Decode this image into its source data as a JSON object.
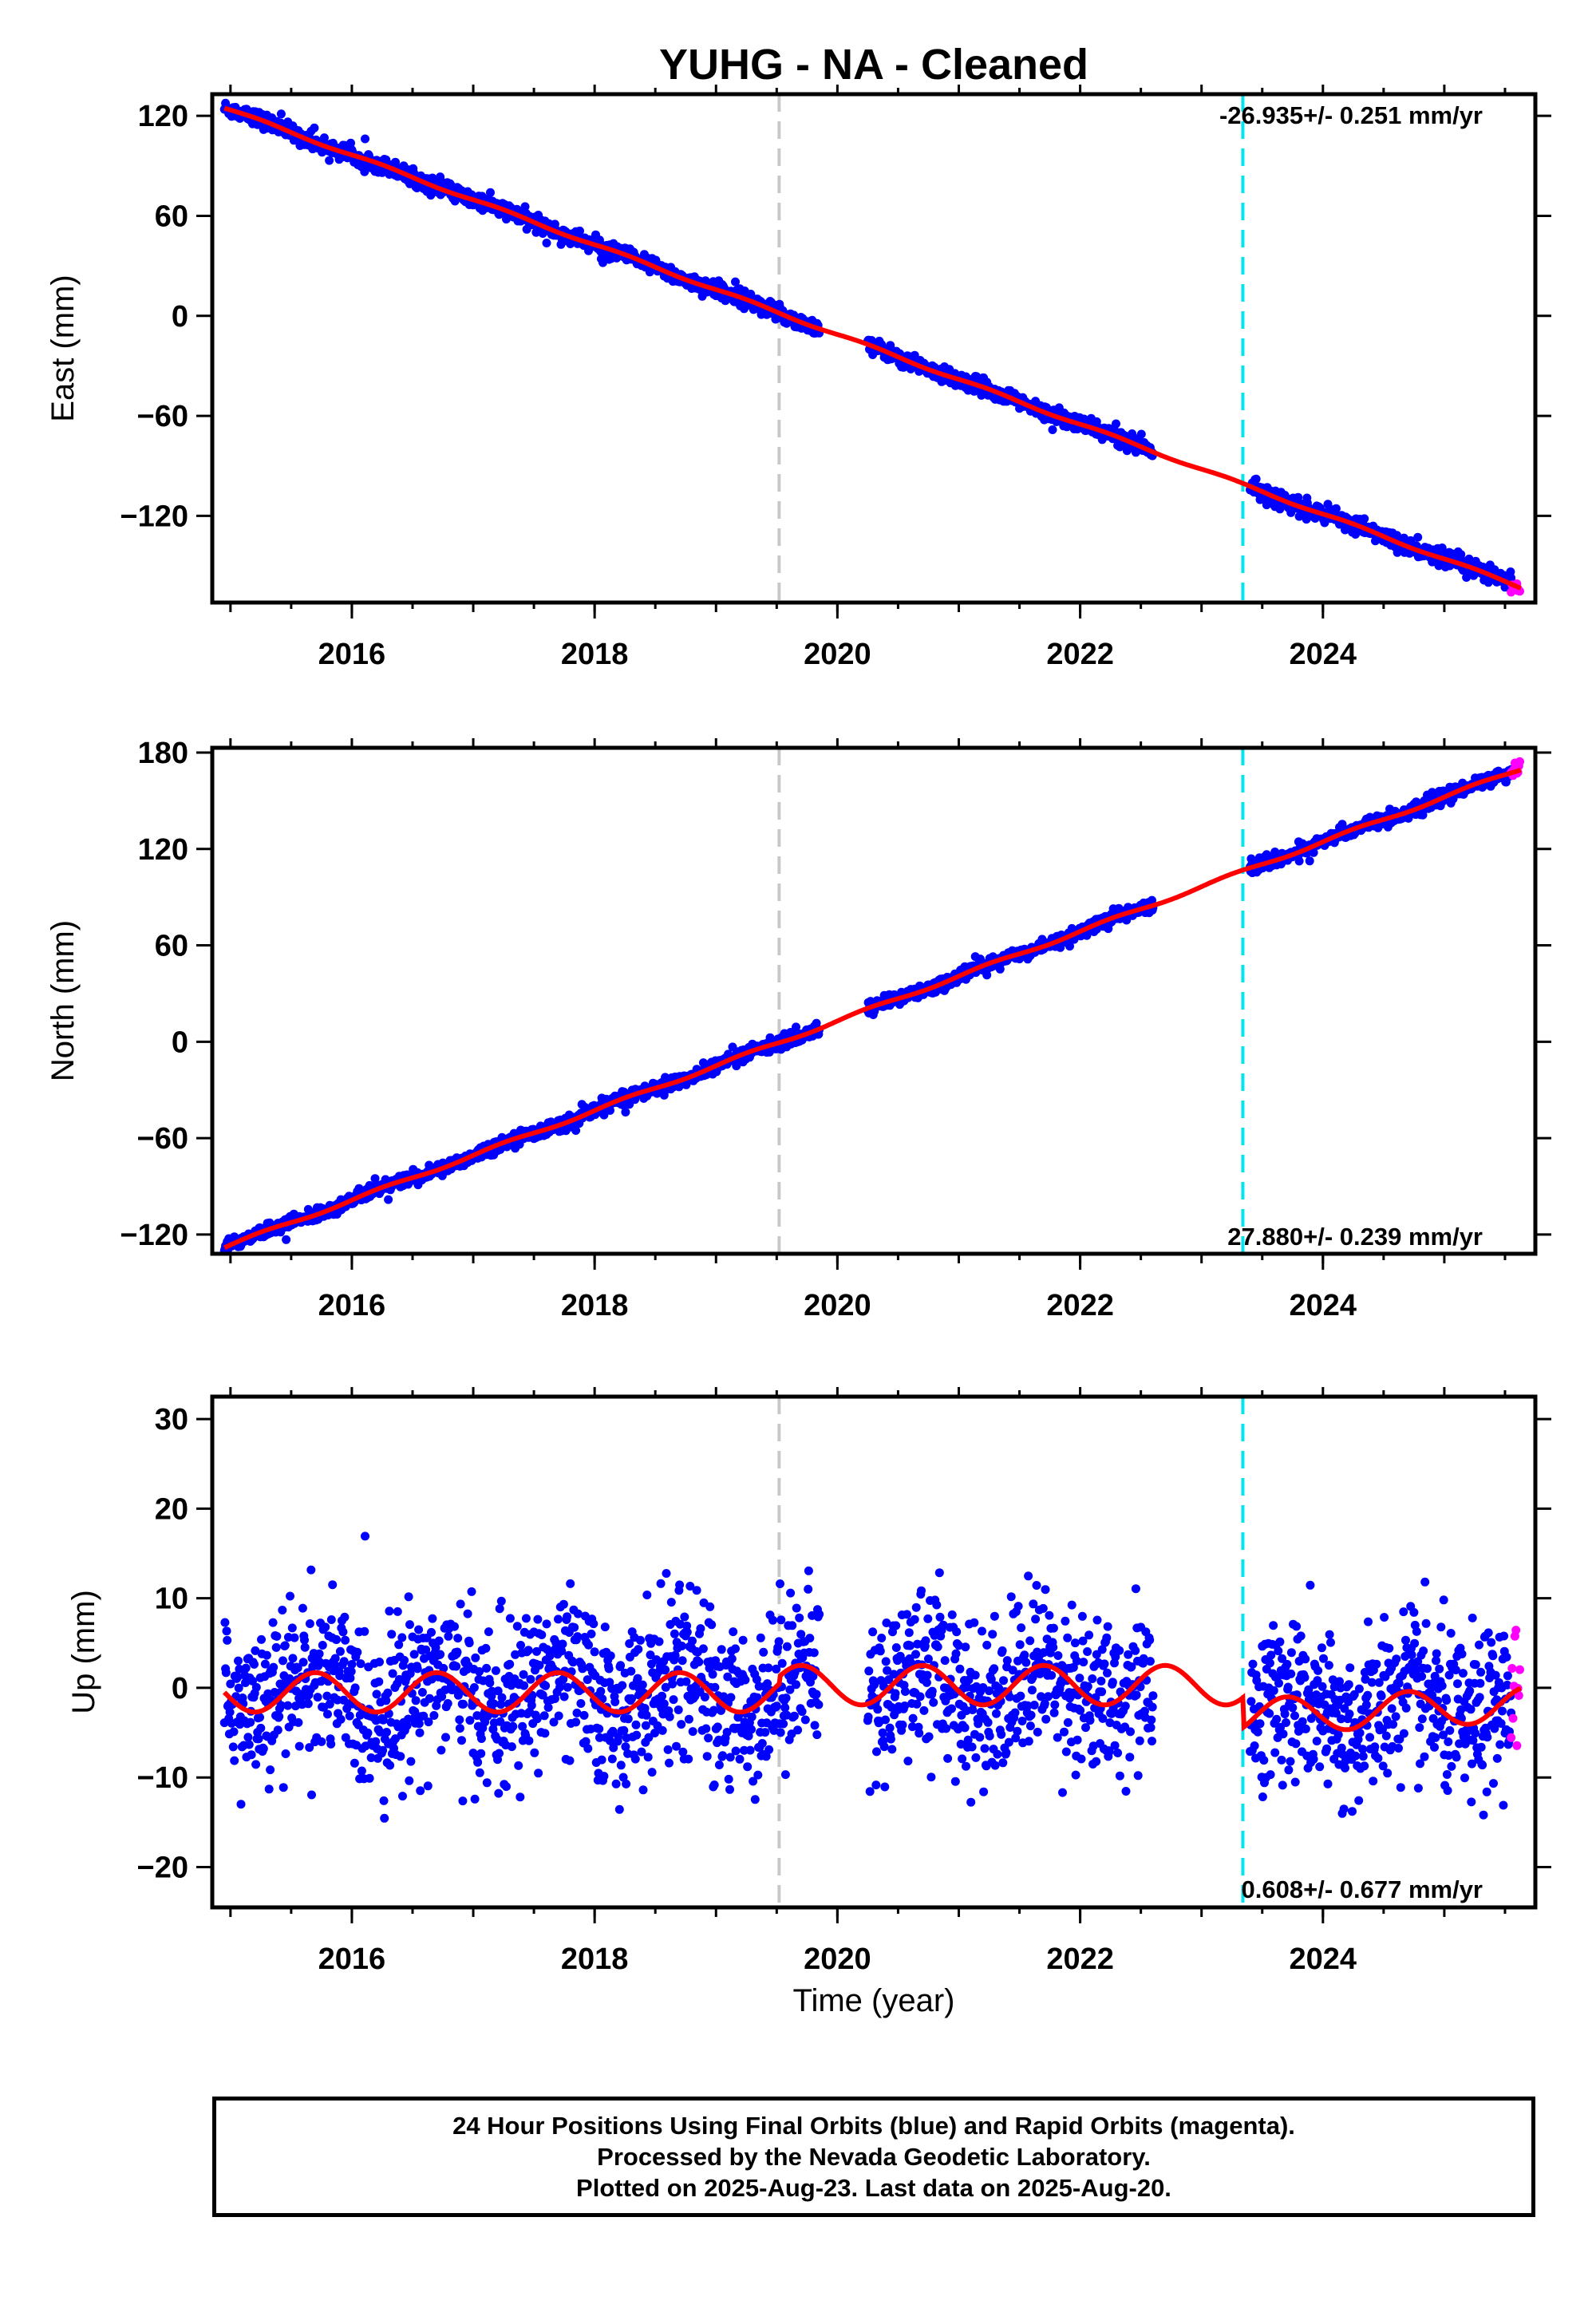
{
  "figure": {
    "title": "YUHG  - NA - Cleaned",
    "xlabel": "Time (year)",
    "colors": {
      "final": "#0000ff",
      "rapid": "#ff00ff",
      "model": "#ff0000",
      "event_gray": "#c8c8c8",
      "event_cyan": "#00e5ee"
    }
  },
  "footer": {
    "line1": "24 Hour Positions Using Final Orbits (blue) and Rapid Orbits (magenta).",
    "line2": "Processed by the Nevada Geodetic Laboratory.",
    "line3": "Plotted on 2025-Aug-23. Last data on 2025-Aug-20."
  },
  "chart_data": [
    {
      "type": "scatter",
      "component": "east",
      "ylabel": "East (mm)",
      "rate_text": "-26.935+/- 0.251 mm/yr",
      "xlim": [
        2014.85,
        2025.75
      ],
      "ylim": [
        -172,
        133
      ],
      "yticks": [
        -120,
        -60,
        0,
        60,
        120
      ],
      "xticks": [
        2016,
        2018,
        2020,
        2022,
        2024
      ],
      "events": [
        {
          "x": 2019.52,
          "color": "gray"
        },
        {
          "x": 2023.34,
          "color": "cyan"
        }
      ],
      "segments": [
        [
          2014.95,
          2019.85
        ],
        [
          2020.25,
          2022.6
        ],
        [
          2023.4,
          2025.55
        ]
      ],
      "rapid_x_range": [
        2025.55,
        2025.63
      ],
      "trend": {
        "y_at_2015": 123.5,
        "rate": -26.935
      },
      "noise": 2.3,
      "seasonal": 0.8
    },
    {
      "type": "scatter",
      "component": "north",
      "ylabel": "North (mm)",
      "rate_text": "27.880+/- 0.239 mm/yr",
      "xlim": [
        2014.85,
        2025.75
      ],
      "ylim": [
        -132,
        183
      ],
      "yticks": [
        -120,
        -60,
        0,
        60,
        120,
        180
      ],
      "xticks": [
        2016,
        2018,
        2020,
        2022,
        2024
      ],
      "events": [
        {
          "x": 2019.52,
          "color": "gray"
        },
        {
          "x": 2023.34,
          "color": "cyan"
        }
      ],
      "segments": [
        [
          2014.95,
          2019.85
        ],
        [
          2020.25,
          2022.6
        ],
        [
          2023.4,
          2025.55
        ]
      ],
      "rapid_x_range": [
        2025.55,
        2025.63
      ],
      "trend": {
        "y_at_2015": -126.5,
        "rate": 27.88
      },
      "noise": 2.0,
      "seasonal": 1.0
    },
    {
      "type": "scatter",
      "component": "up",
      "ylabel": "Up (mm)",
      "rate_text": "0.608+/- 0.677 mm/yr",
      "xlim": [
        2014.85,
        2025.75
      ],
      "ylim": [
        -24.5,
        32.5
      ],
      "yticks": [
        -20,
        -10,
        0,
        10,
        20,
        30
      ],
      "xticks": [
        2016,
        2018,
        2020,
        2022,
        2024
      ],
      "events": [
        {
          "x": 2019.52,
          "color": "gray"
        },
        {
          "x": 2023.34,
          "color": "cyan"
        }
      ],
      "segments": [
        [
          2014.95,
          2019.85
        ],
        [
          2020.25,
          2022.6
        ],
        [
          2023.4,
          2025.55
        ]
      ],
      "rapid_x_range": [
        2025.55,
        2025.63
      ],
      "trend": {
        "y_at_2015": -0.5,
        "rate": 0.0,
        "offset_after_2023_34": -3.2,
        "rate_after": 0.6
      },
      "noise": 4.5,
      "seasonal": 2.2
    }
  ]
}
